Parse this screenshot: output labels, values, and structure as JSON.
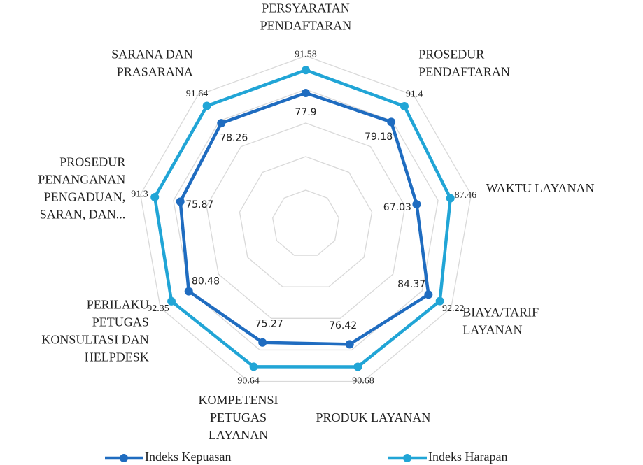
{
  "chart_data": {
    "type": "radar",
    "categories": [
      "PERSYARATAN PENDAFTARAN",
      "PROSEDUR PENDAFTARAN",
      "WAKTU LAYANAN",
      "BIAYA/TARIF LAYANAN",
      "PRODUK LAYANAN",
      "KOMPETENSI PETUGAS LAYANAN",
      "PERILAKU PETUGAS KONSULTASI DAN HELPDESK",
      "PROSEDUR PENANGANAN PENGADUAN, SARAN, DAN...",
      "SARANA DAN PRASARANA"
    ],
    "series": [
      {
        "name": "Indeks Kepuasan",
        "color": "#1f6cc0",
        "values": [
          77.9,
          79.18,
          67.03,
          84.37,
          76.42,
          75.27,
          80.48,
          75.87,
          78.26
        ]
      },
      {
        "name": "Indeks Harapan",
        "color": "#21a5d6",
        "values": [
          91.58,
          91.4,
          87.46,
          92.22,
          90.68,
          90.64,
          92.35,
          91.3,
          91.64
        ]
      }
    ],
    "ylim": [
      0,
      100
    ],
    "yticks": [
      20,
      40,
      60,
      80,
      100
    ],
    "grid": true,
    "legend": "bottom"
  }
}
